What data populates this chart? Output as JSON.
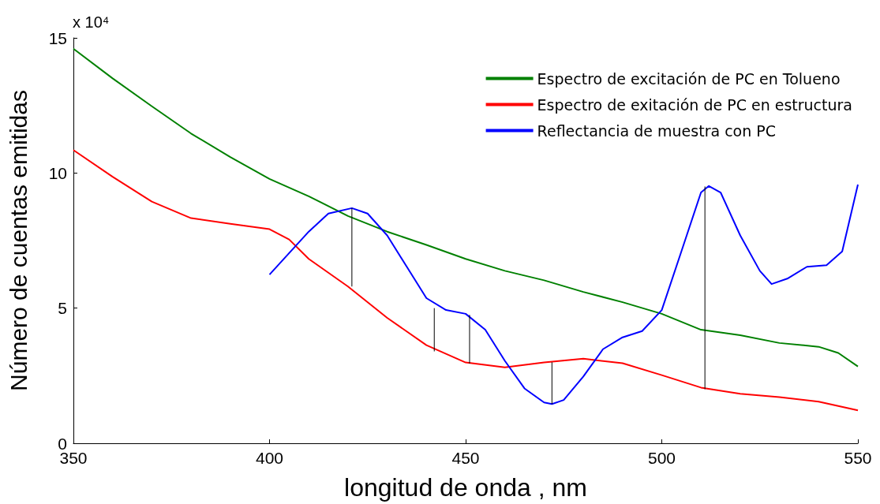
{
  "chart_data": {
    "type": "line",
    "xlabel": "longitud de onda , nm",
    "ylabel": "Número de cuentas emitidas",
    "annotations": [
      "x 10⁴"
    ],
    "xlim": [
      350,
      550
    ],
    "xticks": [
      350,
      400,
      450,
      500,
      550
    ],
    "ylim": [
      0,
      15
    ],
    "yticks": [
      0,
      5,
      10,
      15
    ],
    "grid": false,
    "legend": "top right",
    "marker": "none",
    "line_style": "solid",
    "series": [
      {
        "name": "Espectro de excitación de PC en Tolueno",
        "color": "#008000",
        "x": [
          350,
          360,
          370,
          380,
          390,
          400,
          410,
          420,
          430,
          440,
          450,
          460,
          470,
          480,
          490,
          500,
          510,
          520,
          530,
          540,
          545,
          550
        ],
        "values": [
          14.6,
          13.5,
          12.47,
          11.46,
          10.59,
          9.78,
          9.14,
          8.41,
          7.83,
          7.34,
          6.82,
          6.38,
          6.03,
          5.6,
          5.22,
          4.79,
          4.2,
          4.0,
          3.71,
          3.57,
          3.34,
          2.84
        ]
      },
      {
        "name": "Espectro de exitación de PC en estructura",
        "color": "#ff0000",
        "x": [
          350,
          360,
          370,
          380,
          390,
          400,
          405,
          410,
          420,
          430,
          440,
          450,
          460,
          470,
          480,
          490,
          500,
          510,
          520,
          530,
          540,
          550
        ],
        "values": [
          10.85,
          9.86,
          8.94,
          8.33,
          8.12,
          7.92,
          7.54,
          6.82,
          5.8,
          4.64,
          3.63,
          2.99,
          2.81,
          2.99,
          3.13,
          2.96,
          2.52,
          2.06,
          1.83,
          1.71,
          1.54,
          1.22
        ]
      },
      {
        "name": "Reflectancia de muestra con PC",
        "color": "#0000ff",
        "x": [
          400,
          410,
          415,
          421,
          425,
          430,
          435,
          440,
          445,
          450,
          455,
          460,
          465,
          470,
          472,
          475,
          480,
          485,
          490,
          495,
          500,
          505,
          510,
          512,
          515,
          520,
          525,
          528,
          532,
          537,
          542,
          546,
          550
        ],
        "values": [
          6.24,
          7.83,
          8.5,
          8.7,
          8.5,
          7.69,
          6.53,
          5.37,
          4.93,
          4.79,
          4.2,
          3.05,
          2.03,
          1.51,
          1.45,
          1.6,
          2.47,
          3.48,
          3.92,
          4.15,
          4.93,
          7.1,
          9.28,
          9.52,
          9.28,
          7.69,
          6.38,
          5.89,
          6.09,
          6.53,
          6.59,
          7.1,
          9.57
        ]
      },
      {
        "color": "#000000",
        "x": [
          421,
          421
        ],
        "values": [
          8.7,
          5.8
        ]
      },
      {
        "color": "#000000",
        "x": [
          442,
          442
        ],
        "values": [
          5.0,
          3.4
        ]
      },
      {
        "color": "#000000",
        "x": [
          451,
          451
        ],
        "values": [
          4.75,
          2.95
        ]
      },
      {
        "color": "#000000",
        "x": [
          472,
          472
        ],
        "values": [
          1.45,
          3.0
        ]
      },
      {
        "color": "#000000",
        "x": [
          511,
          511
        ],
        "values": [
          9.5,
          2.0
        ]
      }
    ]
  }
}
